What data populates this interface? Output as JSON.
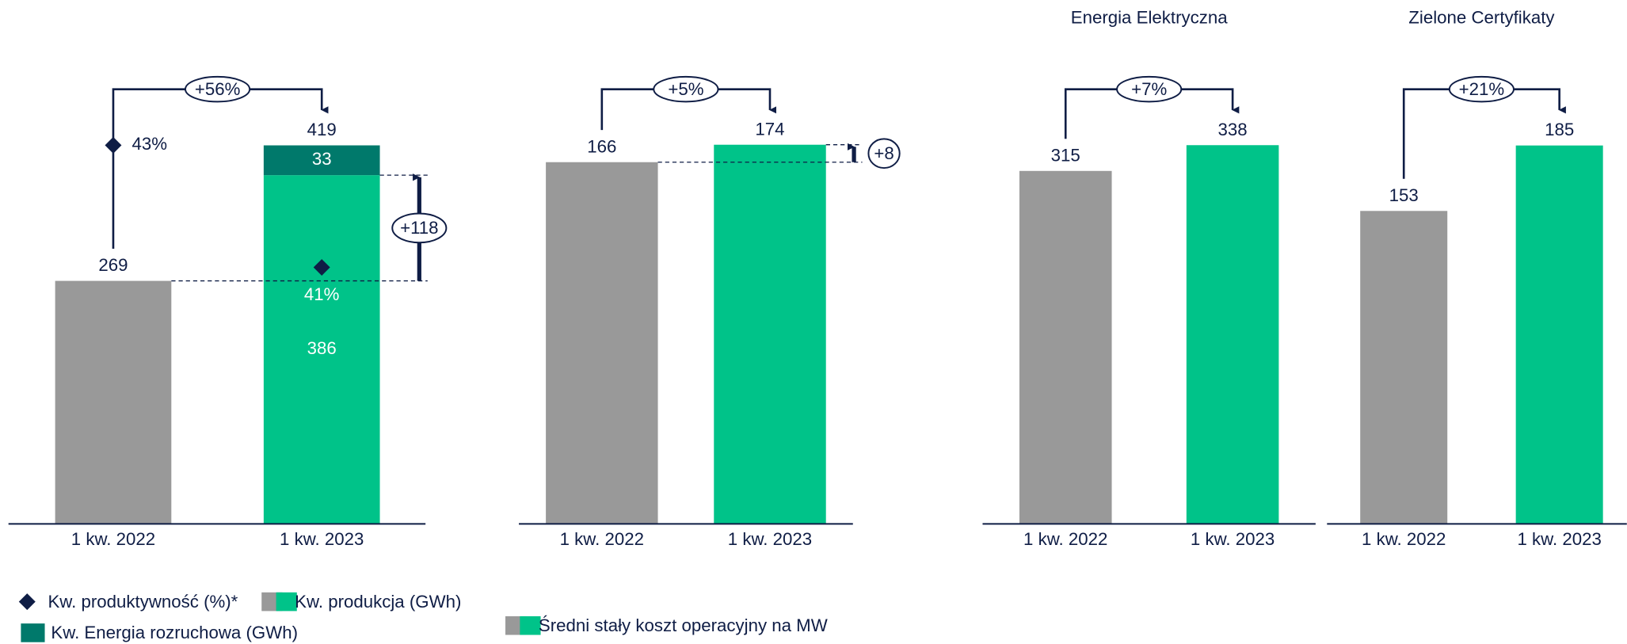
{
  "chart_data": [
    {
      "type": "bar",
      "stacked": true,
      "inside_labels": true,
      "categories": [
        "1 kw. 2022",
        "1 kw. 2023"
      ],
      "series": [
        {
          "name": "Kw. produkcja (GWh)",
          "colors": [
            "#999999",
            "#00c389"
          ],
          "values": [
            269,
            386
          ]
        },
        {
          "name": "Kw. Energia rozruchowa (GWh)",
          "color": "#00796b",
          "values": [
            null,
            33
          ]
        }
      ],
      "totals": [
        269,
        419
      ],
      "productivity": {
        "name": "Kw. produktywność (%)*",
        "color": "#0f1d45",
        "axis": "y2",
        "values": [
          43,
          41
        ],
        "value_labels": [
          "43%",
          "41%"
        ]
      },
      "ylim": [
        0,
        480
      ],
      "y2lim": [
        36.8,
        43.9
      ],
      "annotations": {
        "change": "+56%",
        "difference": "+118"
      }
    },
    {
      "type": "bar",
      "stacked": true,
      "categories": [
        "1 kw. 2022",
        "1 kw. 2023"
      ],
      "series": [
        {
          "name": "Średni stały koszt operacyjny na MW",
          "colors": [
            "#999999",
            "#00c389"
          ],
          "values": [
            166,
            174
          ]
        }
      ],
      "ylim": [
        0,
        199
      ],
      "annotations": {
        "change": "+5%",
        "difference": "+8"
      }
    },
    {
      "type": "bar",
      "stacked": true,
      "title": "Energia Elektryczna",
      "categories": [
        "1 kw. 2022",
        "1 kw. 2023"
      ],
      "series": [
        {
          "colors": [
            "#999999",
            "#00c389"
          ],
          "values": [
            315,
            338
          ]
        }
      ],
      "ylim": [
        0,
        387
      ],
      "annotations": {
        "change": "+7%"
      }
    },
    {
      "type": "bar",
      "stacked": true,
      "title": "Zielone Certyfikaty",
      "categories": [
        "1 kw. 2022",
        "1 kw. 2023"
      ],
      "series": [
        {
          "colors": [
            "#999999",
            "#00c389"
          ],
          "values": [
            153,
            185
          ]
        }
      ],
      "ylim": [
        0,
        212
      ],
      "annotations": {
        "change": "+21%"
      }
    }
  ]
}
